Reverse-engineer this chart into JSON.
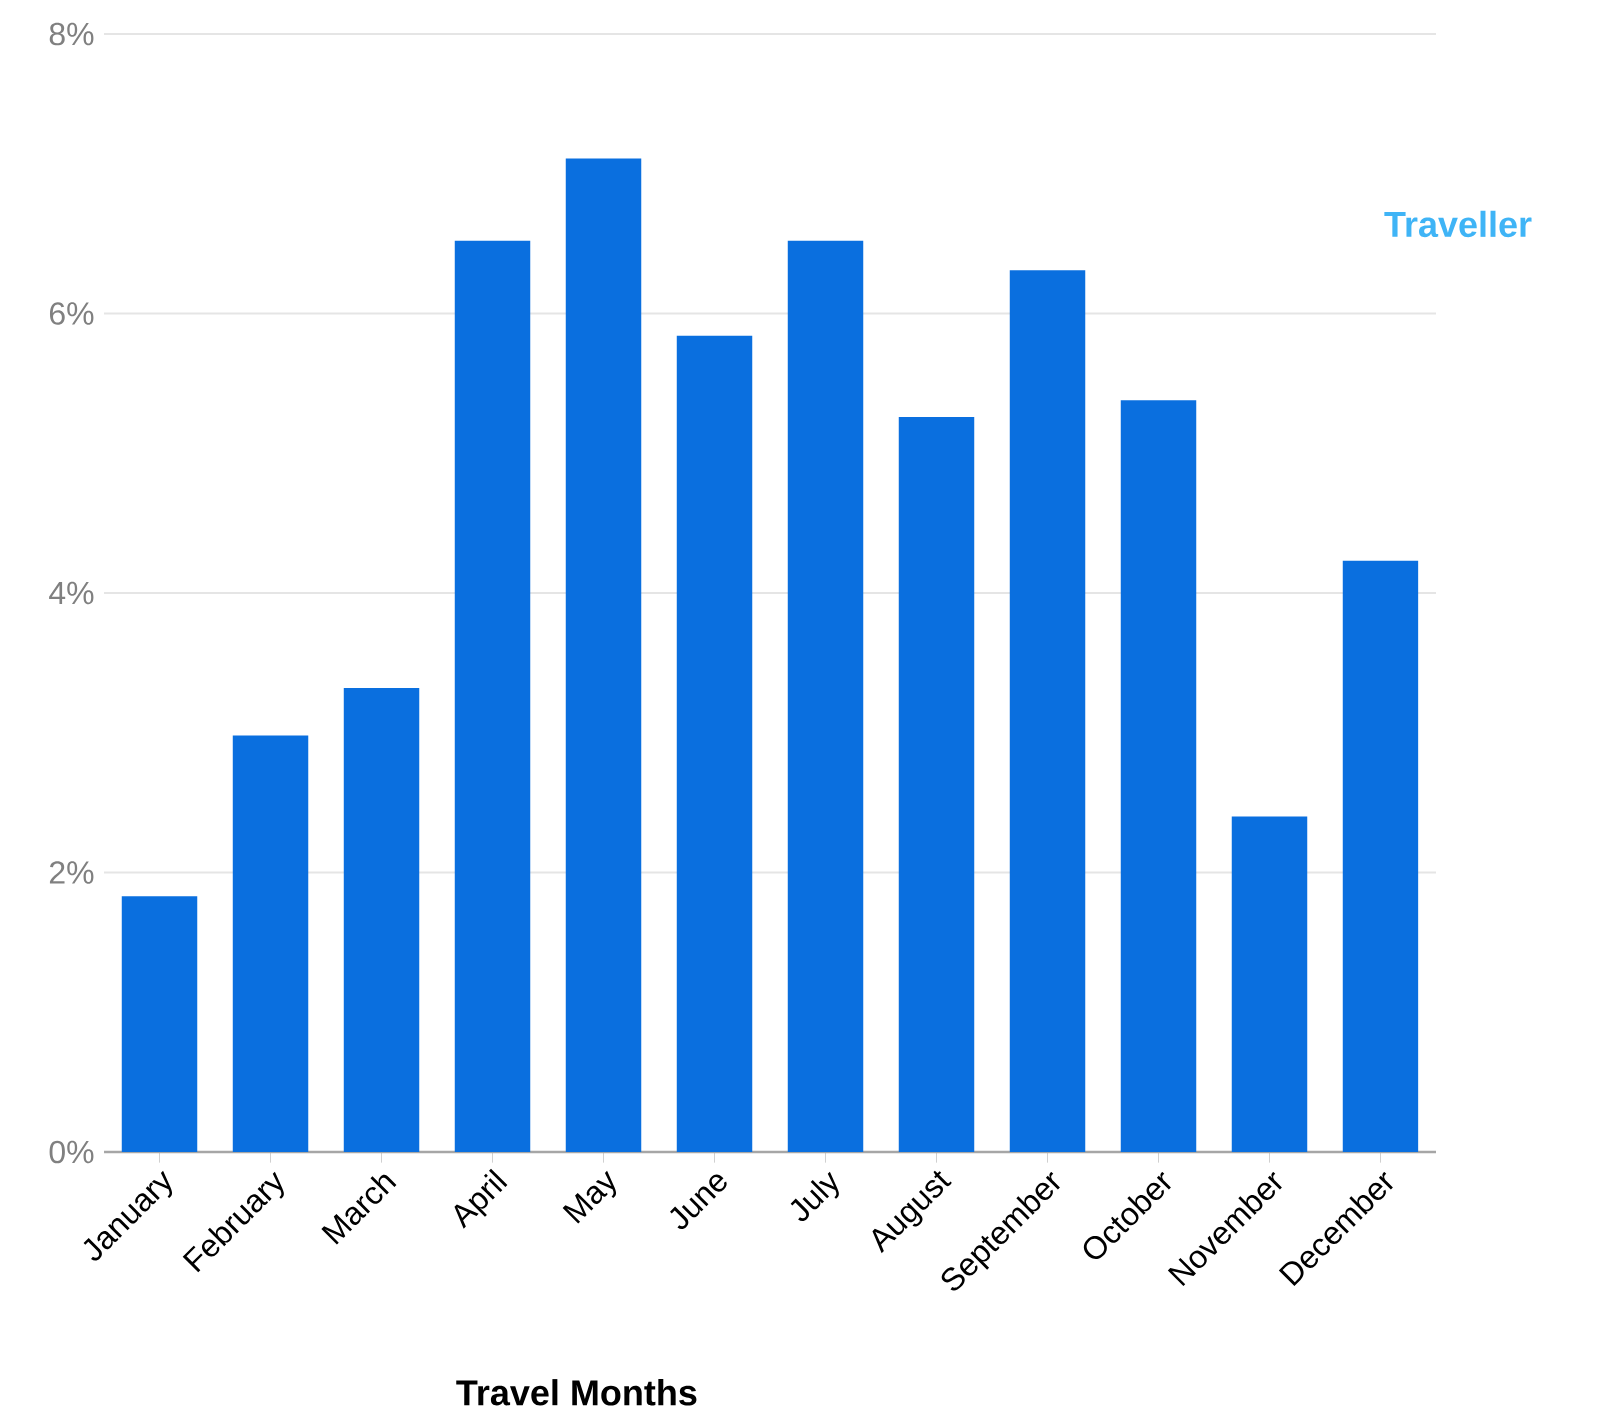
{
  "chart_data": {
    "type": "bar",
    "xlabel": "Travel Months",
    "categories": [
      "January",
      "February",
      "March",
      "April",
      "May",
      "June",
      "July",
      "August",
      "September",
      "October",
      "November",
      "December"
    ],
    "values": [
      1.83,
      2.98,
      3.32,
      6.52,
      7.11,
      5.84,
      6.52,
      5.26,
      6.31,
      5.38,
      2.4,
      4.23
    ],
    "color": "#0a6fdf",
    "ylim": [
      0,
      8
    ],
    "yticks": [
      {
        "value": 0,
        "label": "0%"
      },
      {
        "value": 2,
        "label": "2%"
      },
      {
        "value": 4,
        "label": "4%"
      },
      {
        "value": 6,
        "label": "6%"
      },
      {
        "value": 8,
        "label": "8%"
      }
    ],
    "grid": "y",
    "annotations": [
      "Traveller"
    ]
  }
}
